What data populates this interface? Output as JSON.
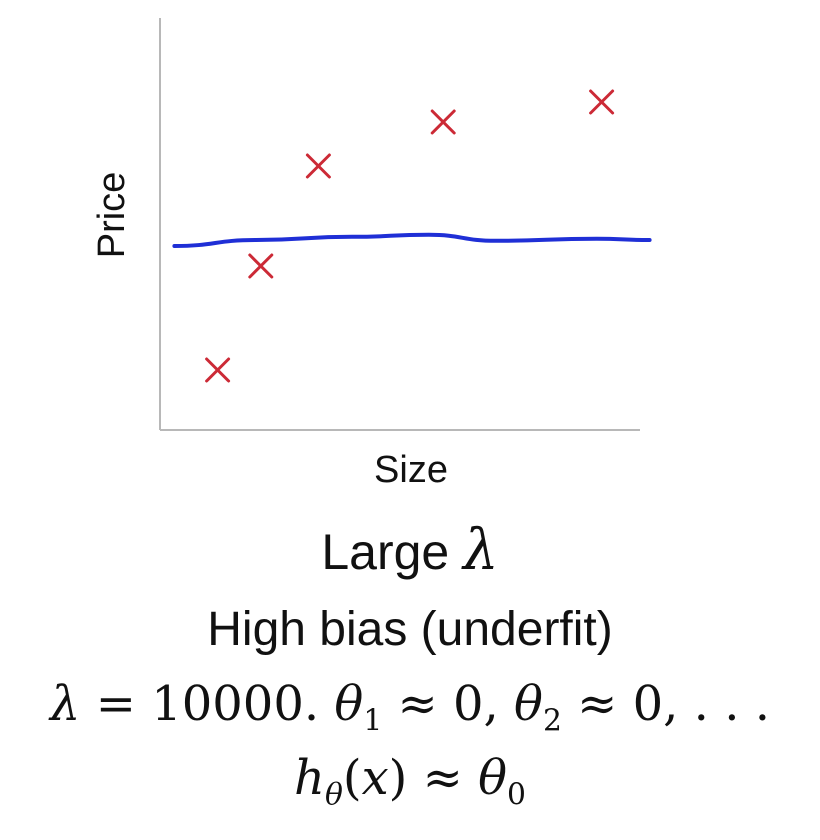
{
  "chart_data": {
    "type": "scatter",
    "xlabel": "Size",
    "ylabel": "Price",
    "xlim": [
      0,
      10
    ],
    "ylim": [
      0,
      10
    ],
    "grid": false,
    "points": [
      {
        "x": 1.2,
        "y": 1.5
      },
      {
        "x": 2.1,
        "y": 4.1
      },
      {
        "x": 3.3,
        "y": 6.6
      },
      {
        "x": 5.9,
        "y": 7.7
      },
      {
        "x": 9.2,
        "y": 8.2
      }
    ],
    "fit_line": {
      "x": [
        0.3,
        2.0,
        4.0,
        5.6,
        7.0,
        9.1,
        10.2
      ],
      "y": [
        4.6,
        4.75,
        4.83,
        4.88,
        4.73,
        4.78,
        4.75
      ]
    },
    "colors": {
      "points": "#cc2a36",
      "fit_line": "#1f2fd6",
      "axes": "#b8b8b8"
    }
  },
  "caption": {
    "large_prefix": "Large",
    "lambda": "λ",
    "bias": "High bias (underfit)",
    "eq1": {
      "lambda": "λ",
      "equals": " = 10000. ",
      "theta": "θ",
      "sub1": "1",
      "approx1": " ≈ 0, ",
      "sub2": "2",
      "approx2": " ≈ 0, . . ."
    },
    "eq2": {
      "h": "h",
      "h_sub": "θ",
      "paren_open": "(",
      "x": "x",
      "paren_close": ")",
      "approx": " ≈ ",
      "theta": "θ",
      "sub0": "0"
    }
  }
}
